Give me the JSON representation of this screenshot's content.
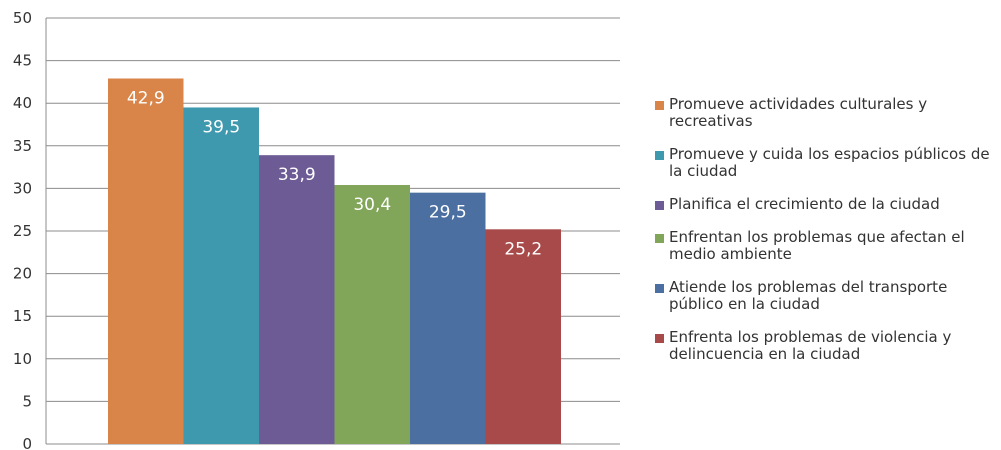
{
  "chart_data": {
    "type": "bar",
    "categories": [
      "Promueve actividades culturales y recreativas",
      "Promueve y cuida los espacios públicos de la ciudad",
      "Planifica el crecimiento de la ciudad",
      "Enfrentan los problemas que afectan el medio ambiente",
      "Atiende los problemas del transporte público en la ciudad",
      "Enfrenta los problemas de violencia y delincuencia en la ciudad"
    ],
    "values": [
      42.9,
      39.5,
      33.9,
      30.4,
      29.5,
      25.2
    ],
    "value_labels": [
      "42,9",
      "39,5",
      "33,9",
      "30,4",
      "29,5",
      "25,2"
    ],
    "colors": [
      "#d9854a",
      "#3e98ae",
      "#6c5b94",
      "#82a659",
      "#4a6fa0",
      "#a84a4a"
    ],
    "ylim": [
      0,
      50
    ],
    "yticks": [
      "0",
      "5",
      "10",
      "15",
      "20",
      "25",
      "30",
      "35",
      "40",
      "45",
      "50"
    ],
    "grid": true,
    "legend_position": "right",
    "title": "",
    "xlabel": "",
    "ylabel": ""
  }
}
